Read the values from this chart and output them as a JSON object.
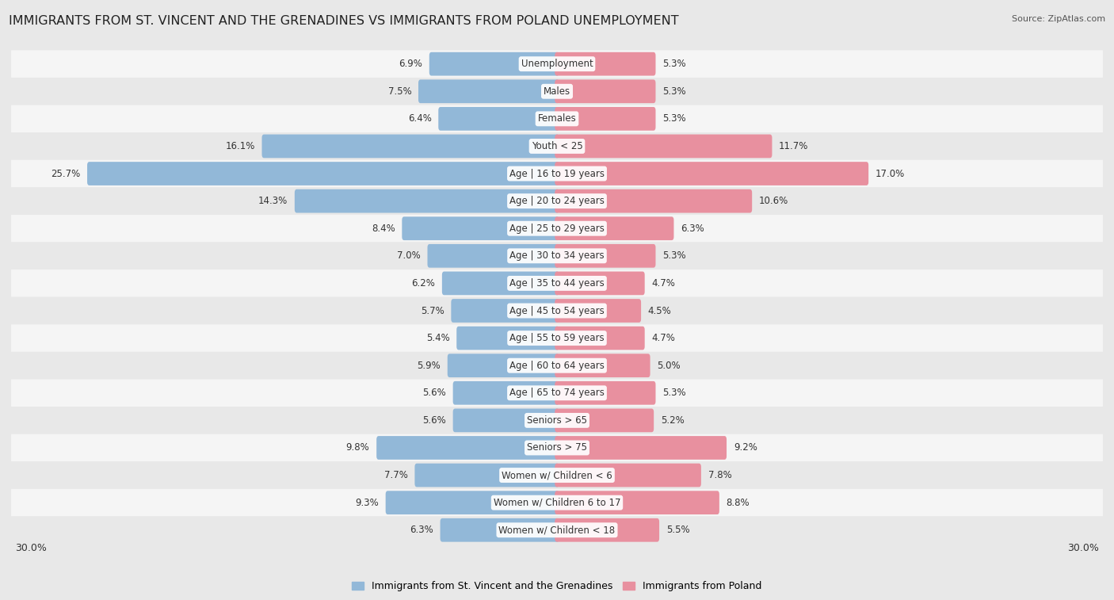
{
  "title": "IMMIGRANTS FROM ST. VINCENT AND THE GRENADINES VS IMMIGRANTS FROM POLAND UNEMPLOYMENT",
  "source": "Source: ZipAtlas.com",
  "categories": [
    "Unemployment",
    "Males",
    "Females",
    "Youth < 25",
    "Age | 16 to 19 years",
    "Age | 20 to 24 years",
    "Age | 25 to 29 years",
    "Age | 30 to 34 years",
    "Age | 35 to 44 years",
    "Age | 45 to 54 years",
    "Age | 55 to 59 years",
    "Age | 60 to 64 years",
    "Age | 65 to 74 years",
    "Seniors > 65",
    "Seniors > 75",
    "Women w/ Children < 6",
    "Women w/ Children 6 to 17",
    "Women w/ Children < 18"
  ],
  "left_values": [
    6.9,
    7.5,
    6.4,
    16.1,
    25.7,
    14.3,
    8.4,
    7.0,
    6.2,
    5.7,
    5.4,
    5.9,
    5.6,
    5.6,
    9.8,
    7.7,
    9.3,
    6.3
  ],
  "right_values": [
    5.3,
    5.3,
    5.3,
    11.7,
    17.0,
    10.6,
    6.3,
    5.3,
    4.7,
    4.5,
    4.7,
    5.0,
    5.3,
    5.2,
    9.2,
    7.8,
    8.8,
    5.5
  ],
  "left_color": "#92b8d8",
  "right_color": "#e8909f",
  "left_label": "Immigrants from St. Vincent and the Grenadines",
  "right_label": "Immigrants from Poland",
  "axis_label_left": "30.0%",
  "axis_label_right": "30.0%",
  "background_color": "#e8e8e8",
  "row_even_color": "#f5f5f5",
  "row_odd_color": "#e8e8e8",
  "title_fontsize": 11.5,
  "bar_height": 0.62,
  "max_val": 30.0,
  "label_fontsize": 8.5,
  "cat_fontsize": 8.5
}
